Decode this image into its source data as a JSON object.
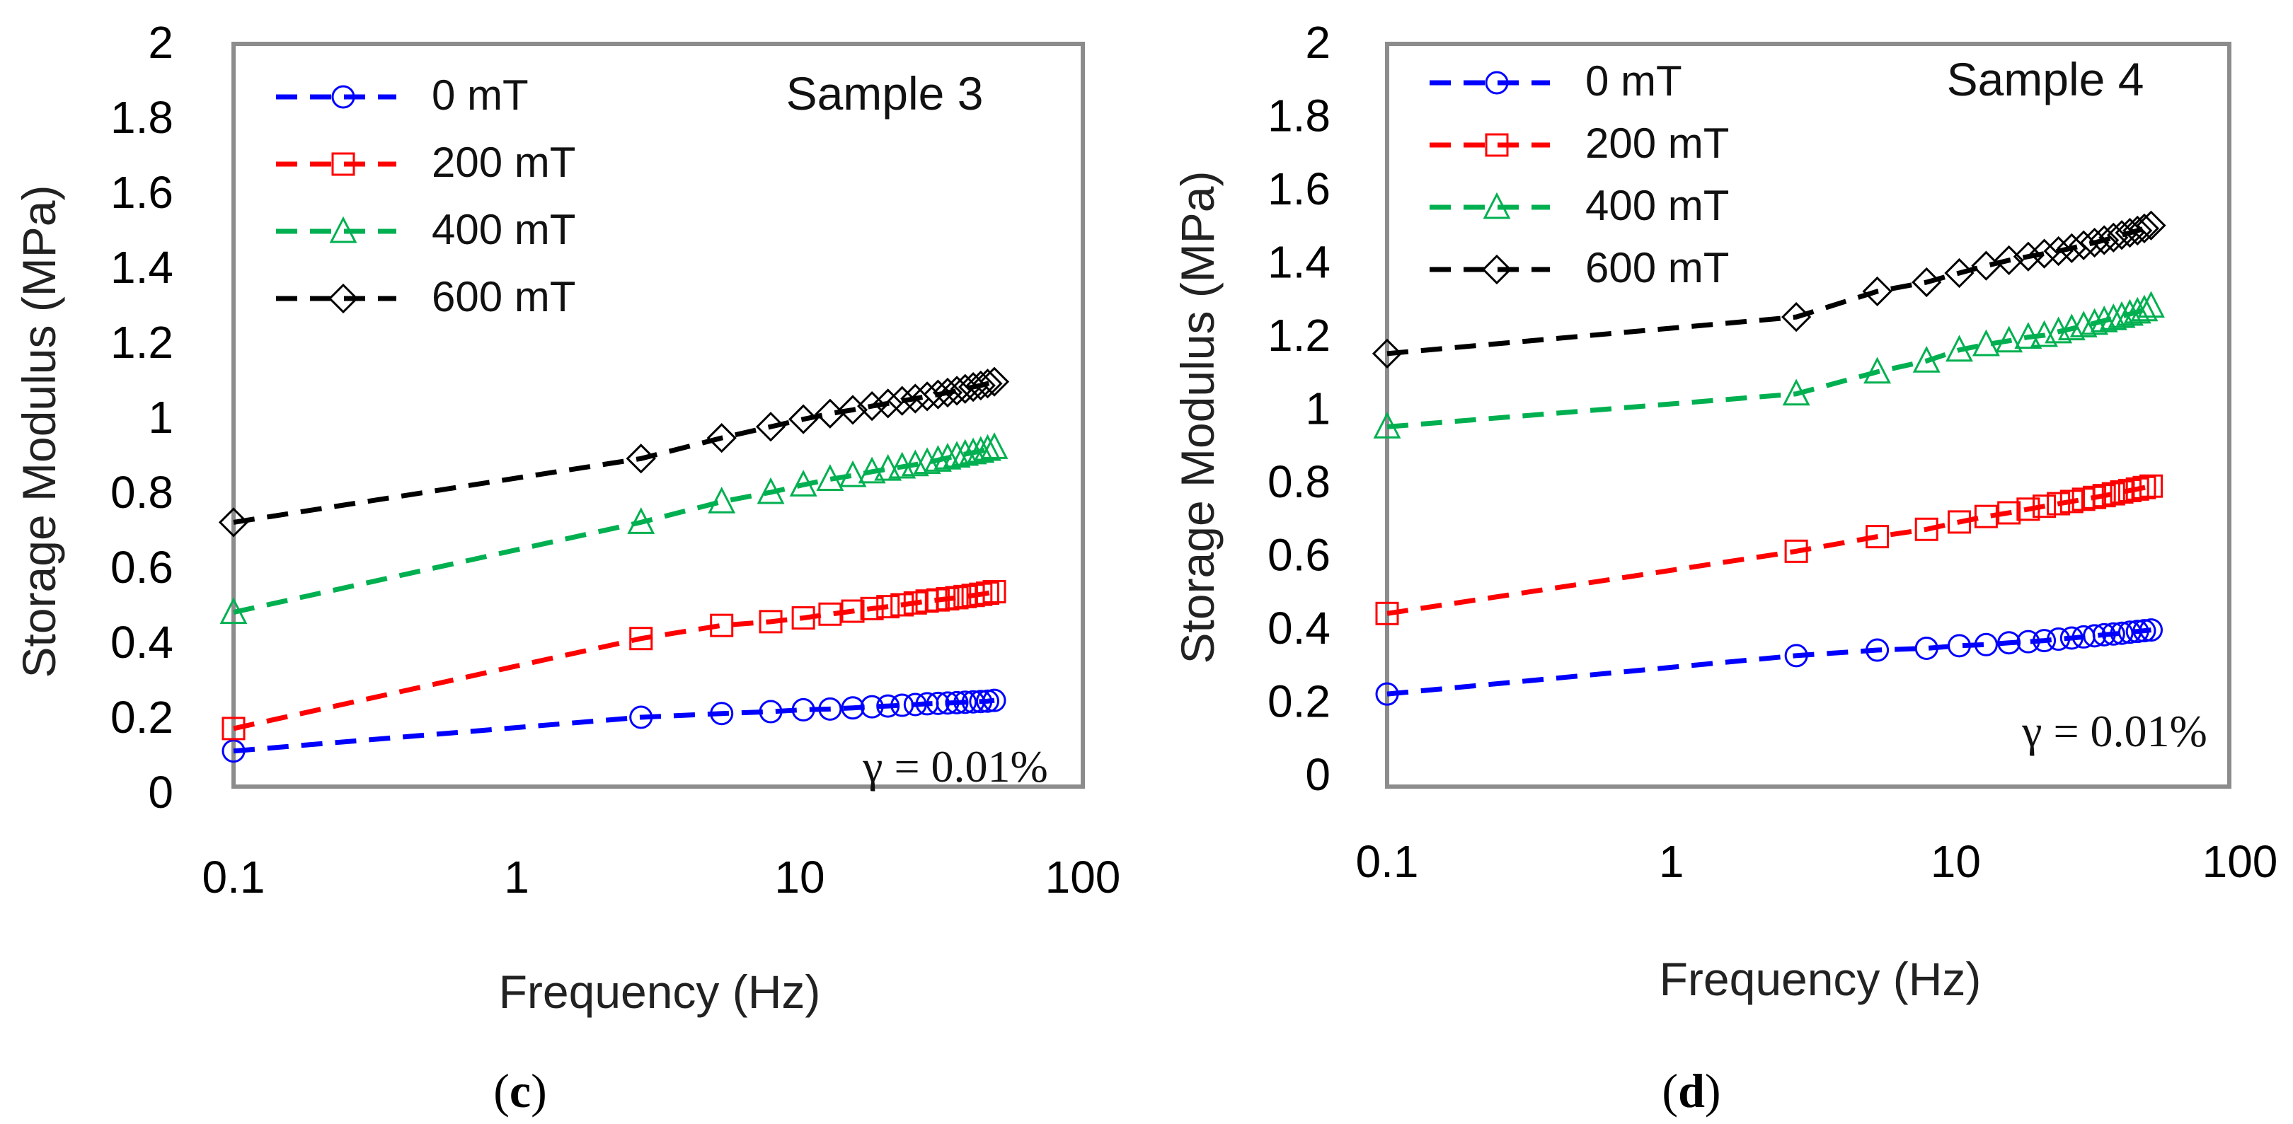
{
  "chart_data": [
    {
      "type": "line",
      "panel": "c",
      "caption_open": "(",
      "caption_letter": "c",
      "caption_close": ")",
      "title": "Sample 3",
      "annotation": "γ = 0.01%",
      "xlabel": "Frequency (Hz)",
      "ylabel": "Storage Modulus (MPa)",
      "xscale": "log",
      "xlim": [
        0.1,
        100
      ],
      "ylim": [
        0,
        2
      ],
      "xticks": [
        "0.1",
        "1",
        "10",
        "100"
      ],
      "yticks": [
        "0",
        "0.2",
        "0.4",
        "0.6",
        "0.8",
        "1",
        "1.2",
        "1.4",
        "1.6",
        "1.8",
        "2"
      ],
      "legend_position": "top-left",
      "x": [
        0.1,
        2.75,
        5.3,
        7.9,
        10.3,
        12.8,
        15.4,
        18,
        20.5,
        23,
        25.6,
        28.2,
        30.8,
        33.3,
        35.9,
        38.4,
        41,
        43.6,
        46.1,
        48.7
      ],
      "series": [
        {
          "name": "0 mT",
          "color": "#0000ff",
          "marker": "circle",
          "values": [
            0.11,
            0.2,
            0.21,
            0.215,
            0.22,
            0.222,
            0.225,
            0.228,
            0.23,
            0.232,
            0.234,
            0.236,
            0.237,
            0.238,
            0.239,
            0.24,
            0.241,
            0.242,
            0.243,
            0.245
          ]
        },
        {
          "name": "200 mT",
          "color": "#ff0000",
          "marker": "square",
          "values": [
            0.17,
            0.41,
            0.445,
            0.455,
            0.465,
            0.475,
            0.483,
            0.49,
            0.495,
            0.5,
            0.505,
            0.51,
            0.513,
            0.516,
            0.519,
            0.522,
            0.525,
            0.528,
            0.531,
            0.535
          ]
        },
        {
          "name": "400 mT",
          "color": "#00b050",
          "marker": "triangle",
          "values": [
            0.48,
            0.72,
            0.775,
            0.8,
            0.82,
            0.835,
            0.845,
            0.855,
            0.862,
            0.868,
            0.874,
            0.88,
            0.886,
            0.892,
            0.897,
            0.902,
            0.906,
            0.91,
            0.915,
            0.92
          ]
        },
        {
          "name": "600 mT",
          "color": "#000000",
          "marker": "diamond",
          "values": [
            0.72,
            0.89,
            0.945,
            0.975,
            0.995,
            1.01,
            1.02,
            1.03,
            1.037,
            1.044,
            1.05,
            1.056,
            1.061,
            1.066,
            1.071,
            1.076,
            1.081,
            1.085,
            1.09,
            1.095
          ]
        }
      ]
    },
    {
      "type": "line",
      "panel": "d",
      "caption_open": "(",
      "caption_letter": "d",
      "caption_close": ")",
      "title": "Sample 4",
      "annotation": "γ = 0.01%",
      "xlabel": "Frequency (Hz)",
      "ylabel": "Storage Modulus (MPa)",
      "xscale": "log",
      "xlim": [
        0.1,
        100
      ],
      "ylim": [
        0,
        2
      ],
      "xticks": [
        "0.1",
        "1",
        "10",
        "100"
      ],
      "yticks": [
        "0",
        "0.2",
        "0.4",
        "0.6",
        "0.8",
        "1",
        "1.2",
        "1.4",
        "1.6",
        "1.8",
        "2"
      ],
      "legend_position": "top-left",
      "x": [
        0.1,
        2.75,
        5.3,
        7.9,
        10.3,
        12.8,
        15.4,
        18,
        20.5,
        23,
        25.6,
        28.2,
        30.8,
        33.3,
        35.9,
        38.4,
        41,
        43.6,
        46.1,
        48.7
      ],
      "series": [
        {
          "name": "0 mT",
          "color": "#0000ff",
          "marker": "circle",
          "values": [
            0.22,
            0.325,
            0.34,
            0.345,
            0.352,
            0.355,
            0.36,
            0.363,
            0.366,
            0.37,
            0.373,
            0.376,
            0.379,
            0.382,
            0.384,
            0.386,
            0.389,
            0.391,
            0.393,
            0.395
          ]
        },
        {
          "name": "200 mT",
          "color": "#ff0000",
          "marker": "square",
          "values": [
            0.44,
            0.61,
            0.65,
            0.67,
            0.69,
            0.705,
            0.715,
            0.725,
            0.733,
            0.74,
            0.746,
            0.752,
            0.757,
            0.762,
            0.767,
            0.772,
            0.776,
            0.78,
            0.784,
            0.788
          ]
        },
        {
          "name": "400 mT",
          "color": "#00b050",
          "marker": "triangle",
          "values": [
            0.95,
            1.04,
            1.1,
            1.13,
            1.16,
            1.175,
            1.185,
            1.195,
            1.2,
            1.21,
            1.218,
            1.226,
            1.233,
            1.24,
            1.246,
            1.252,
            1.258,
            1.264,
            1.27,
            1.28
          ]
        },
        {
          "name": "600 mT",
          "color": "#000000",
          "marker": "diamond",
          "values": [
            1.15,
            1.25,
            1.32,
            1.345,
            1.37,
            1.39,
            1.405,
            1.415,
            1.423,
            1.43,
            1.438,
            1.446,
            1.453,
            1.46,
            1.467,
            1.474,
            1.48,
            1.486,
            1.492,
            1.5
          ]
        }
      ]
    }
  ]
}
